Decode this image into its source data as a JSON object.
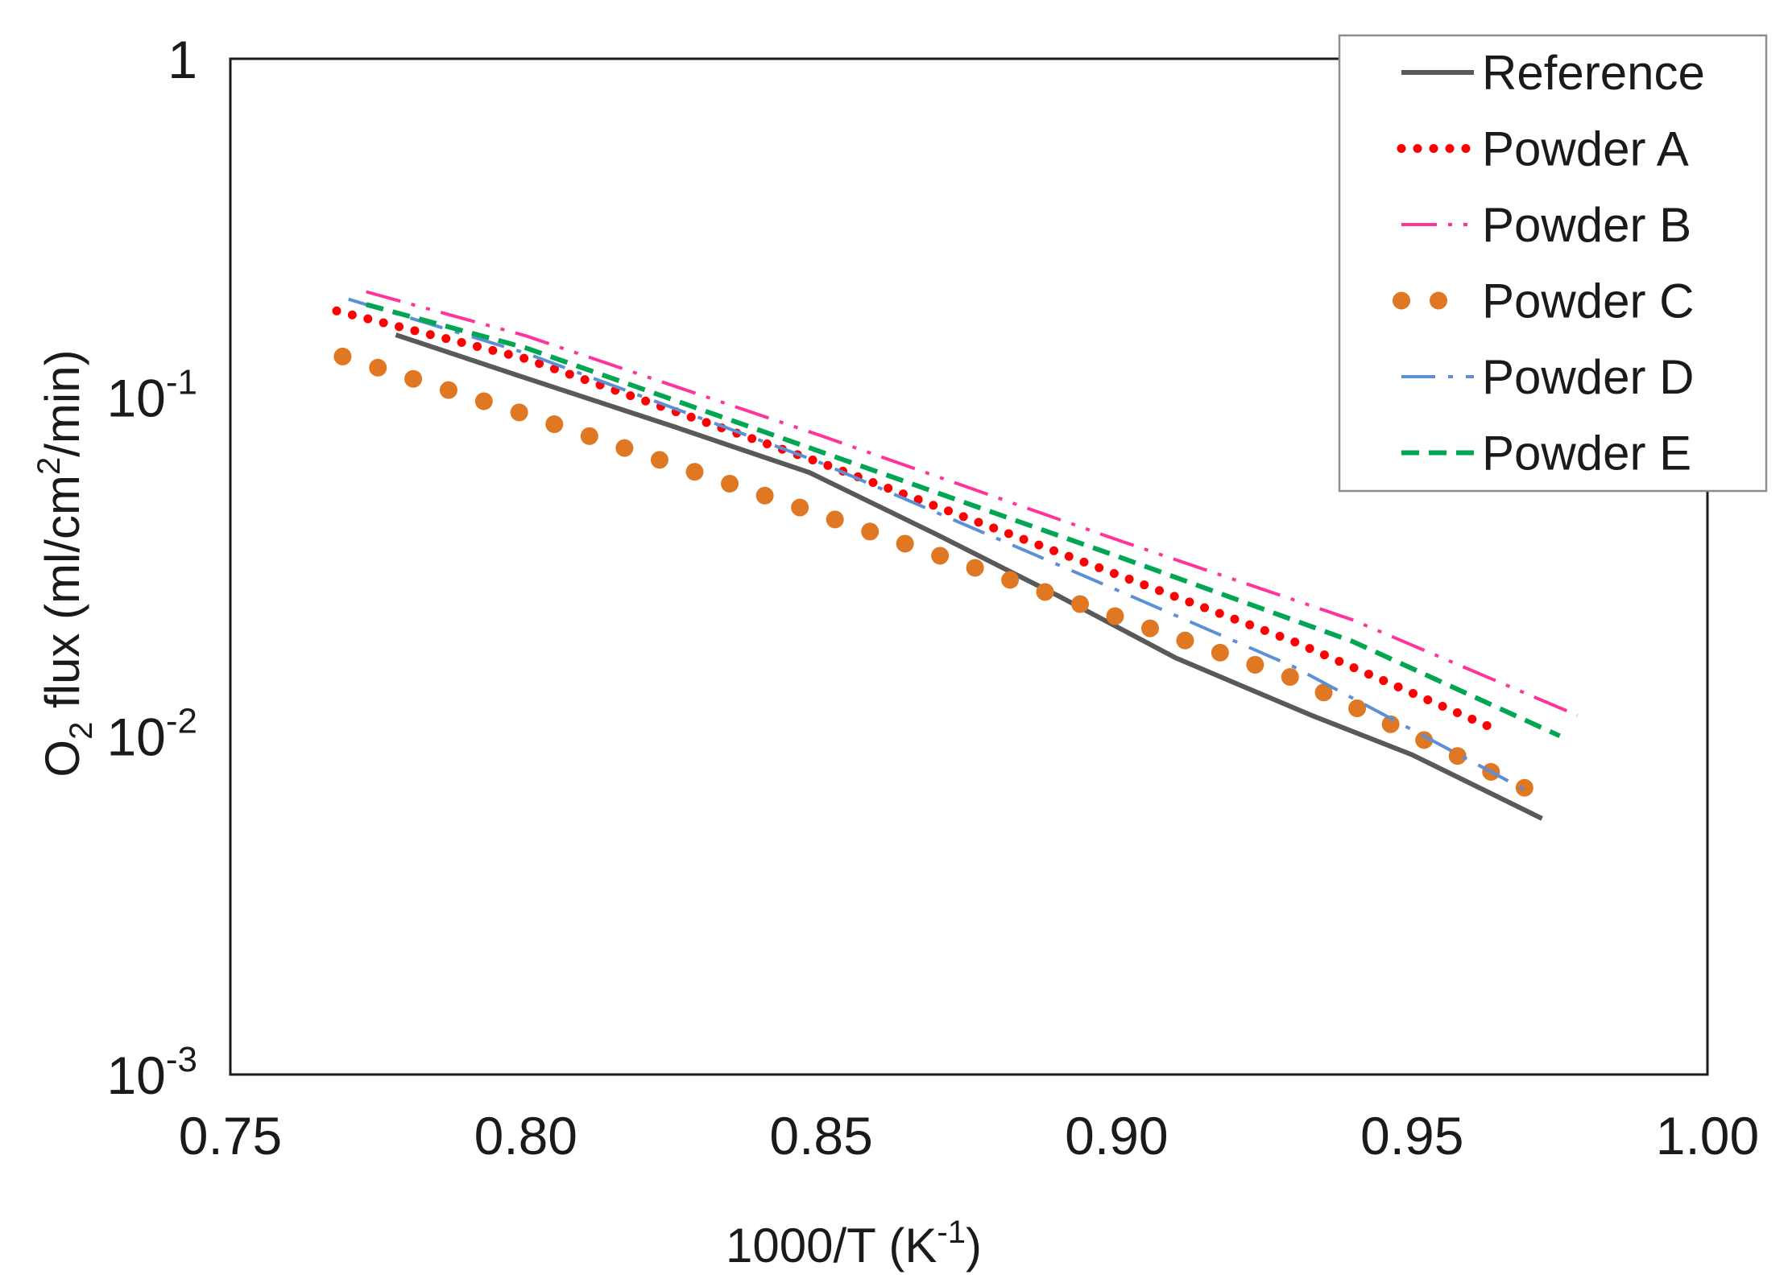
{
  "chart_data": {
    "type": "line",
    "title": "",
    "xlabel": "1000/T (K⁻¹)",
    "xlabel_parts": {
      "main": "1000/T (K",
      "sup": "-1",
      "tail": ")"
    },
    "ylabel": "O₂ flux (ml/cm²/min)",
    "ylabel_parts": {
      "o": "O",
      "sub": "2",
      "mid": " flux (ml/cm",
      "sup": "2",
      "tail": "/min)"
    },
    "xlim": [
      0.75,
      1.0
    ],
    "ylim": [
      0.001,
      1
    ],
    "yscale": "log",
    "x_ticks": [
      {
        "value": 0.75,
        "label": "0.75"
      },
      {
        "value": 0.8,
        "label": "0.80"
      },
      {
        "value": 0.85,
        "label": "0.85"
      },
      {
        "value": 0.9,
        "label": "0.90"
      },
      {
        "value": 0.95,
        "label": "0.95"
      },
      {
        "value": 1.0,
        "label": "1.00"
      }
    ],
    "y_ticks": [
      {
        "value": 1,
        "base": "1",
        "exp": ""
      },
      {
        "value": 0.1,
        "base": "10",
        "exp": "-1"
      },
      {
        "value": 0.01,
        "base": "10",
        "exp": "-2"
      },
      {
        "value": 0.001,
        "base": "10",
        "exp": "-3"
      }
    ],
    "legend_position": "top-right",
    "series": [
      {
        "name": "Reference",
        "color": "#595959",
        "style": "solid",
        "x": [
          0.778,
          0.8,
          0.825,
          0.848,
          0.87,
          0.89,
          0.91,
          0.933,
          0.95,
          0.972
        ],
        "y": [
          0.153,
          0.114,
          0.082,
          0.06,
          0.039,
          0.026,
          0.017,
          0.0115,
          0.0088,
          0.0057
        ]
      },
      {
        "name": "Powder A",
        "color": "#ff0000",
        "style": "dotted",
        "x": [
          0.768,
          0.8,
          0.85,
          0.9,
          0.93,
          0.965
        ],
        "y": [
          0.18,
          0.13,
          0.064,
          0.03,
          0.019,
          0.0103
        ]
      },
      {
        "name": "Powder B",
        "color": "#ff3399",
        "style": "dash-dot-dot",
        "x": [
          0.773,
          0.8,
          0.85,
          0.9,
          0.94,
          0.978
        ],
        "y": [
          0.205,
          0.152,
          0.077,
          0.038,
          0.022,
          0.0115
        ]
      },
      {
        "name": "Powder C",
        "color": "#e07722",
        "style": "big-dots",
        "x": [
          0.769,
          0.8,
          0.85,
          0.9,
          0.93,
          0.97
        ],
        "y": [
          0.132,
          0.089,
          0.045,
          0.0225,
          0.0148,
          0.0069
        ]
      },
      {
        "name": "Powder D",
        "color": "#5b8fd6",
        "style": "dash-dot",
        "x": [
          0.77,
          0.8,
          0.85,
          0.9,
          0.93,
          0.97
        ],
        "y": [
          0.195,
          0.135,
          0.064,
          0.027,
          0.016,
          0.0068
        ]
      },
      {
        "name": "Powder E",
        "color": "#00a651",
        "style": "dashed",
        "x": [
          0.773,
          0.8,
          0.85,
          0.9,
          0.94,
          0.975
        ],
        "y": [
          0.188,
          0.14,
          0.069,
          0.034,
          0.019,
          0.01
        ]
      }
    ]
  }
}
